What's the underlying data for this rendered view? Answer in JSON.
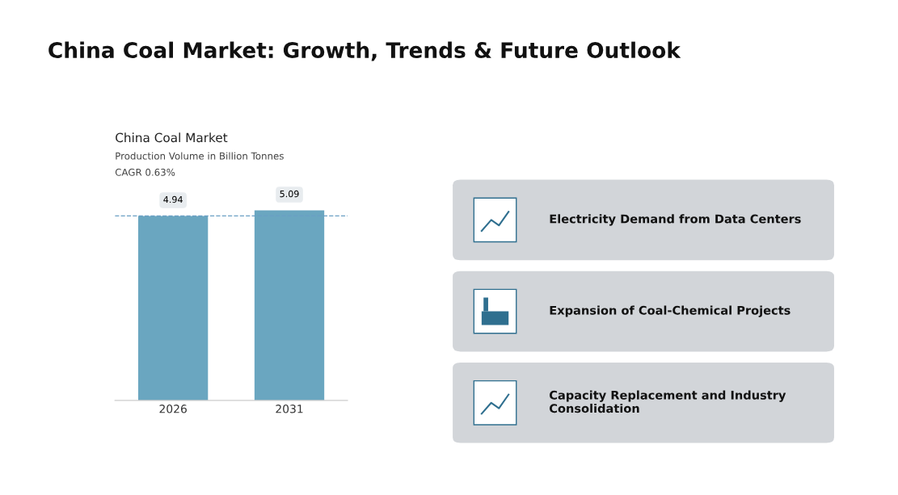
{
  "chart_data": [
    {
      "type": "bar",
      "title": "China Coal Market",
      "subtitle": "Production Volume in Billion Tonnes",
      "annotations": [
        "China Coal Market: Growth, Trends & Future Outlook",
        "CAGR 0.63%"
      ],
      "categories": [
        "2026",
        "2031"
      ],
      "values": [
        4.94,
        5.09
      ],
      "color": "#6aa6c0",
      "data_labels": true,
      "ref_lines": [
        {
          "axis": "y",
          "value": 4.94,
          "color": "#6a9fc4",
          "line_style": "dashed"
        }
      ]
    },
    {
      "type": "other",
      "annotations": [
        "Electricity Demand from Data Centers",
        "Expansion of Coal-Chemical Projects",
        "Capacity Replacement and Industry\nConsolidation"
      ]
    }
  ]
}
